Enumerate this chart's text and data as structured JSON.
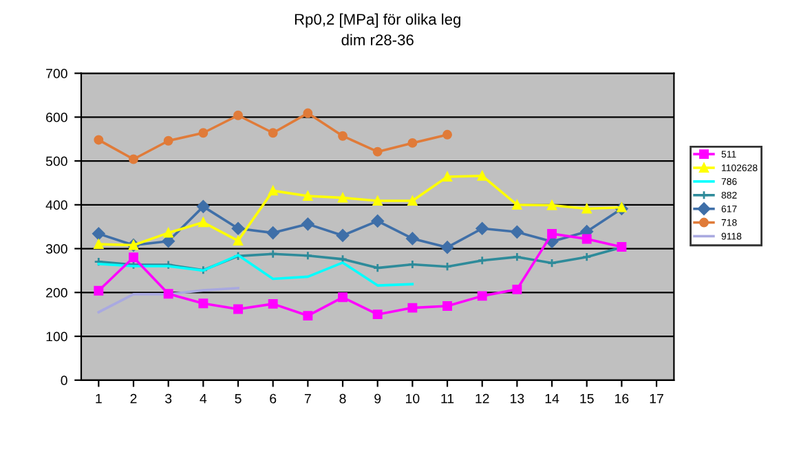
{
  "chart_data": {
    "type": "line",
    "title": "Rp0,2 [MPa] för olika leg",
    "subtitle": "dim r28-36",
    "categories": [
      "1",
      "2",
      "3",
      "4",
      "5",
      "6",
      "7",
      "8",
      "9",
      "10",
      "11",
      "12",
      "13",
      "14",
      "15",
      "16",
      "17"
    ],
    "series": [
      {
        "name": "511",
        "color": "#ff00ff",
        "marker": "square",
        "values": [
          204,
          280,
          197,
          175,
          162,
          174,
          147,
          189,
          150,
          165,
          169,
          192,
          207,
          334,
          322,
          304,
          null
        ]
      },
      {
        "name": "1102628",
        "color": "#ffff00",
        "marker": "triangle",
        "values": [
          310,
          308,
          336,
          360,
          318,
          432,
          420,
          416,
          409,
          409,
          464,
          466,
          400,
          399,
          391,
          394,
          null
        ]
      },
      {
        "name": "786",
        "color": "#00ffff",
        "marker": "none",
        "values": [
          265,
          260,
          260,
          250,
          285,
          231,
          236,
          268,
          216,
          219,
          null,
          null,
          null,
          null,
          null,
          null,
          null
        ]
      },
      {
        "name": "882",
        "color": "#2e8b9a",
        "marker": "cross",
        "values": [
          270,
          263,
          263,
          251,
          283,
          288,
          284,
          276,
          256,
          264,
          259,
          273,
          281,
          267,
          281,
          303,
          null
        ]
      },
      {
        "name": "617",
        "color": "#3f6fa8",
        "marker": "diamond",
        "values": [
          334,
          308,
          317,
          396,
          346,
          336,
          356,
          330,
          363,
          323,
          303,
          346,
          338,
          316,
          339,
          391,
          null
        ]
      },
      {
        "name": "718",
        "color": "#e07b39",
        "marker": "circle",
        "values": [
          548,
          504,
          546,
          564,
          604,
          564,
          609,
          557,
          521,
          541,
          560,
          null,
          null,
          null,
          null,
          null,
          null
        ]
      },
      {
        "name": "9118",
        "color": "#a9a9e0",
        "marker": "none",
        "values": [
          155,
          196,
          196,
          205,
          210,
          null,
          null,
          null,
          null,
          null,
          null,
          null,
          null,
          null,
          null,
          null,
          null
        ]
      }
    ],
    "ylim": [
      0,
      700
    ],
    "yticks": [
      0,
      100,
      200,
      300,
      400,
      500,
      600,
      700
    ],
    "grid": "y",
    "legend": "right"
  }
}
